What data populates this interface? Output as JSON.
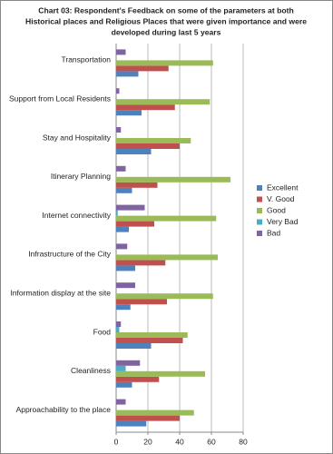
{
  "chart_data": {
    "type": "hbar",
    "title": [
      "Chart 03: Respondent's Feedback on some of the parameters at both",
      "Historical places and Religious Places that were given importance and were",
      "developed during last 5 years"
    ],
    "categories": [
      "Transportation",
      "Support from  Local Residents",
      "Stay and Hospitality",
      "Itinerary Planning",
      "Internet connectivity",
      "Infrastructure of the City",
      "Information display at the site",
      "Food",
      "Cleanliness",
      "Approachability to the place"
    ],
    "series": [
      {
        "name": "Excellent",
        "color": "#4f81bd",
        "values": [
          14,
          16,
          22,
          10,
          8,
          12,
          9,
          22,
          10,
          19
        ]
      },
      {
        "name": "V. Good",
        "color": "#c0504d",
        "values": [
          33,
          37,
          40,
          26,
          24,
          31,
          32,
          42,
          27,
          40
        ]
      },
      {
        "name": "Good",
        "color": "#9bbb59",
        "values": [
          61,
          59,
          47,
          72,
          63,
          64,
          61,
          45,
          56,
          49
        ]
      },
      {
        "name": "Very Bad",
        "color": "#4bacc6",
        "values": [
          0,
          0,
          0,
          0,
          1,
          0,
          0,
          2,
          6,
          0
        ]
      },
      {
        "name": "Bad",
        "color": "#8064a2",
        "values": [
          6,
          2,
          3,
          6,
          18,
          7,
          12,
          3,
          15,
          6
        ]
      }
    ],
    "xlim": [
      0,
      80
    ],
    "xticks": [
      0,
      20,
      40,
      60,
      80
    ],
    "grid": true,
    "legend": "right"
  }
}
